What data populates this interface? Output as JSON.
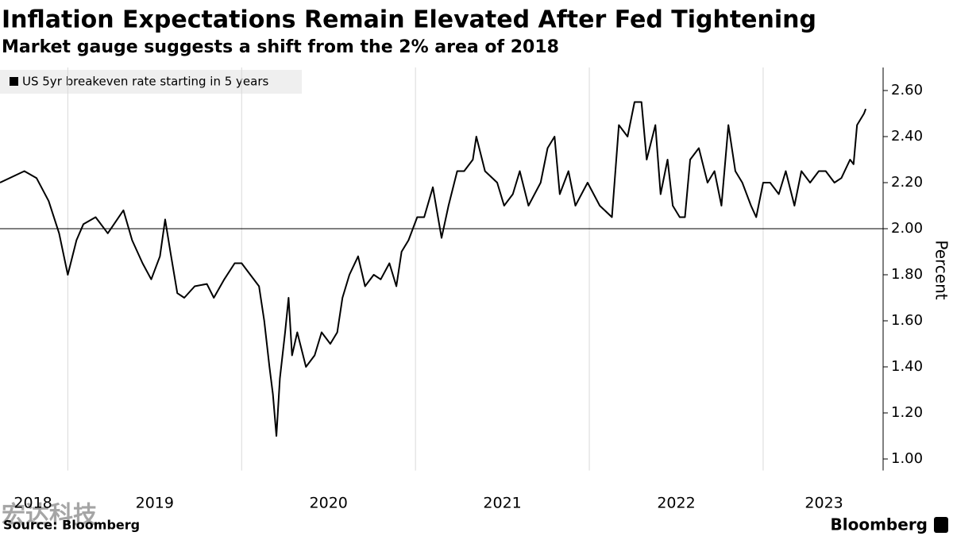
{
  "chart_data": {
    "type": "line",
    "title": "Inflation Expectations Remain Elevated After Fed Tightening",
    "subtitle": "Market gauge suggests a shift from the 2% area of 2018",
    "y_label": "Percent",
    "source": "Source: Bloomberg",
    "brand": "Bloomberg",
    "watermark": "宏达科技",
    "x": [
      2018.61,
      2018.75,
      2018.82,
      2018.89,
      2018.95,
      2019.0,
      2019.05,
      2019.09,
      2019.16,
      2019.23,
      2019.32,
      2019.37,
      2019.43,
      2019.48,
      2019.53,
      2019.56,
      2019.59,
      2019.63,
      2019.67,
      2019.73,
      2019.8,
      2019.84,
      2019.9,
      2019.96,
      2020.0,
      2020.05,
      2020.1,
      2020.13,
      2020.16,
      2020.18,
      2020.2,
      2020.22,
      2020.25,
      2020.27,
      2020.29,
      2020.32,
      2020.37,
      2020.42,
      2020.46,
      2020.51,
      2020.55,
      2020.58,
      2020.62,
      2020.67,
      2020.71,
      2020.76,
      2020.8,
      2020.85,
      2020.89,
      2020.92,
      2020.96,
      2021.01,
      2021.05,
      2021.1,
      2021.15,
      2021.19,
      2021.24,
      2021.28,
      2021.33,
      2021.35,
      2021.4,
      2021.47,
      2021.51,
      2021.56,
      2021.6,
      2021.65,
      2021.72,
      2021.76,
      2021.8,
      2021.83,
      2021.88,
      2021.92,
      2021.99,
      2022.06,
      2022.13,
      2022.17,
      2022.22,
      2022.26,
      2022.3,
      2022.33,
      2022.38,
      2022.41,
      2022.45,
      2022.48,
      2022.52,
      2022.55,
      2022.58,
      2022.63,
      2022.68,
      2022.72,
      2022.76,
      2022.8,
      2022.84,
      2022.88,
      2022.93,
      2022.96,
      2023.0,
      2023.04,
      2023.09,
      2023.13,
      2023.18,
      2023.22,
      2023.27,
      2023.32,
      2023.36,
      2023.41,
      2023.45,
      2023.5,
      2023.52,
      2023.54,
      2023.58,
      2023.59
    ],
    "series": [
      {
        "name": "US 5yr breakeven rate starting in 5 years",
        "color": "#000000",
        "values": [
          2.2,
          2.25,
          2.22,
          2.12,
          1.98,
          1.8,
          1.95,
          2.02,
          2.05,
          1.98,
          2.08,
          1.95,
          1.85,
          1.78,
          1.88,
          2.04,
          1.9,
          1.72,
          1.7,
          1.75,
          1.76,
          1.7,
          1.78,
          1.85,
          1.85,
          1.8,
          1.75,
          1.6,
          1.4,
          1.28,
          1.1,
          1.35,
          1.55,
          1.7,
          1.45,
          1.55,
          1.4,
          1.45,
          1.55,
          1.5,
          1.55,
          1.7,
          1.8,
          1.88,
          1.75,
          1.8,
          1.78,
          1.85,
          1.75,
          1.9,
          1.95,
          2.05,
          2.05,
          2.18,
          1.96,
          2.1,
          2.25,
          2.25,
          2.3,
          2.4,
          2.25,
          2.2,
          2.1,
          2.15,
          2.25,
          2.1,
          2.2,
          2.35,
          2.4,
          2.15,
          2.25,
          2.1,
          2.2,
          2.1,
          2.05,
          2.45,
          2.4,
          2.55,
          2.55,
          2.3,
          2.45,
          2.15,
          2.3,
          2.1,
          2.05,
          2.05,
          2.3,
          2.35,
          2.2,
          2.25,
          2.1,
          2.45,
          2.25,
          2.2,
          2.1,
          2.05,
          2.2,
          2.2,
          2.15,
          2.25,
          2.1,
          2.25,
          2.2,
          2.25,
          2.25,
          2.2,
          2.22,
          2.3,
          2.28,
          2.45,
          2.5,
          2.52
        ]
      }
    ],
    "xlim": [
      2018.61,
      2023.69
    ],
    "xticks": [
      {
        "value": 2018.8,
        "label": "2018"
      },
      {
        "value": 2019.5,
        "label": "2019"
      },
      {
        "value": 2020.5,
        "label": "2020"
      },
      {
        "value": 2021.5,
        "label": "2021"
      },
      {
        "value": 2022.5,
        "label": "2022"
      },
      {
        "value": 2023.35,
        "label": "2023"
      }
    ],
    "xgrid": [
      2019,
      2020,
      2021,
      2022,
      2023
    ],
    "ylim": [
      0.95,
      2.7
    ],
    "yticks": [
      {
        "value": 1.0,
        "label": "1.00"
      },
      {
        "value": 1.2,
        "label": "1.20"
      },
      {
        "value": 1.4,
        "label": "1.40"
      },
      {
        "value": 1.6,
        "label": "1.60"
      },
      {
        "value": 1.8,
        "label": "1.80"
      },
      {
        "value": 2.0,
        "label": "2.00"
      },
      {
        "value": 2.2,
        "label": "2.20"
      },
      {
        "value": 2.4,
        "label": "2.40"
      },
      {
        "value": 2.6,
        "label": "2.60"
      }
    ],
    "hline": 2.0,
    "legend": "top-left"
  }
}
